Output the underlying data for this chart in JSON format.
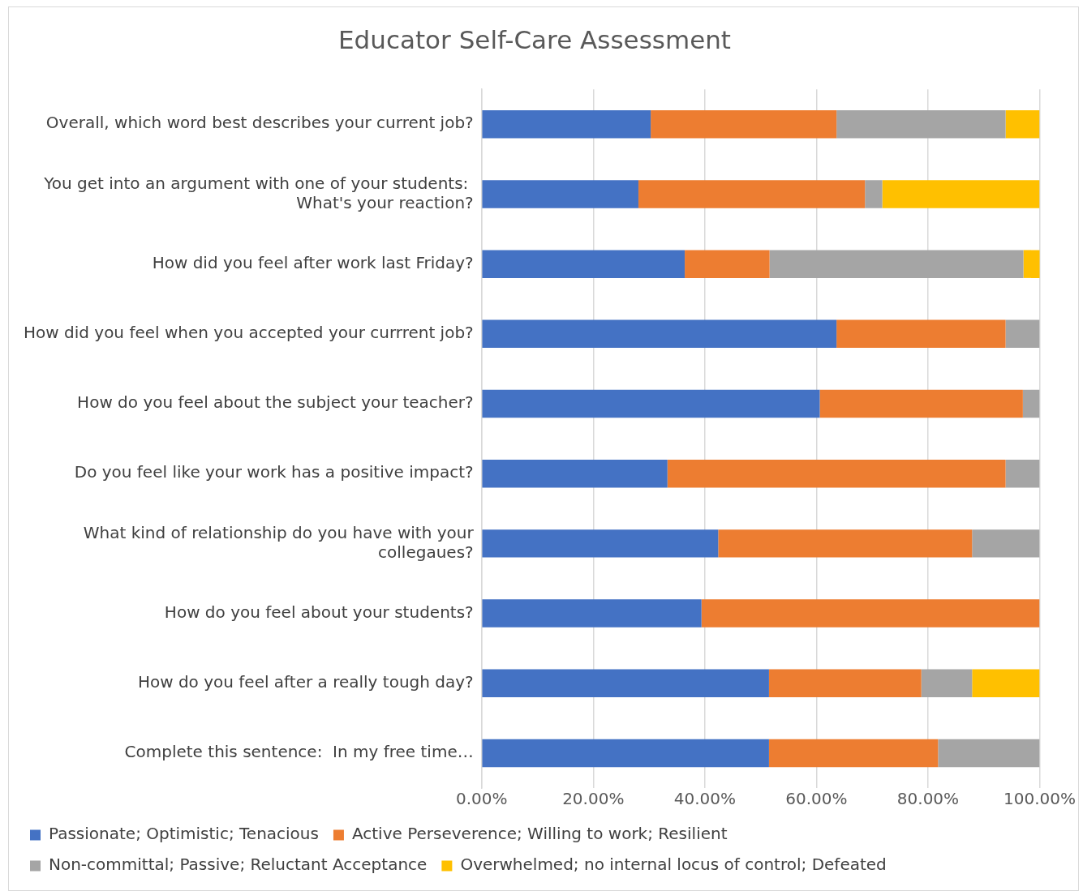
{
  "chart_data": {
    "type": "bar",
    "orientation": "horizontal",
    "stacked": true,
    "title": "Educator Self-Care Assessment",
    "categories": [
      "Overall, which word best describes your current job?",
      "You get into an argument with one of your students:  What's your reaction?",
      "How did you feel after work last Friday?",
      "How did you feel when you accepted your currrent job?",
      "How do you feel about the subject your teacher?",
      "Do you feel like your work has a positive impact?",
      "What kind of relationship do you have with your collegaues?",
      "How do you feel about your students?",
      "How do you feel after a really tough day?",
      "Complete this sentence:  In my free time…"
    ],
    "series": [
      {
        "name": "Passionate; Optimistic; Tenacious",
        "color": "#4472c4",
        "values": [
          30.3,
          28.1,
          36.4,
          63.6,
          60.6,
          33.3,
          42.4,
          39.4,
          51.5,
          51.5
        ]
      },
      {
        "name": "Active Perseverence; Willing to work; Resilient",
        "color": "#ed7d31",
        "values": [
          33.3,
          40.6,
          15.2,
          30.3,
          36.4,
          60.6,
          45.5,
          60.6,
          27.3,
          30.3
        ]
      },
      {
        "name": "Non-committal; Passive; Reluctant Acceptance",
        "color": "#a5a5a5",
        "values": [
          30.3,
          3.1,
          45.5,
          6.1,
          3.0,
          6.1,
          12.1,
          0,
          9.1,
          18.2
        ]
      },
      {
        "name": "Overwhelmed; no internal locus of control; Defeated",
        "color": "#ffc000",
        "values": [
          6.1,
          28.2,
          3.0,
          0,
          0,
          0,
          0,
          0,
          12.1,
          0
        ]
      }
    ],
    "xlim": [
      0,
      100
    ],
    "xticks": [
      {
        "value": 0,
        "label": "0.00%"
      },
      {
        "value": 20,
        "label": "20.00%"
      },
      {
        "value": 40,
        "label": "40.00%"
      },
      {
        "value": 60,
        "label": "60.00%"
      },
      {
        "value": 80,
        "label": "80.00%"
      },
      {
        "value": 100,
        "label": "100.00%"
      }
    ],
    "grid": "x",
    "legend": "bottom"
  }
}
